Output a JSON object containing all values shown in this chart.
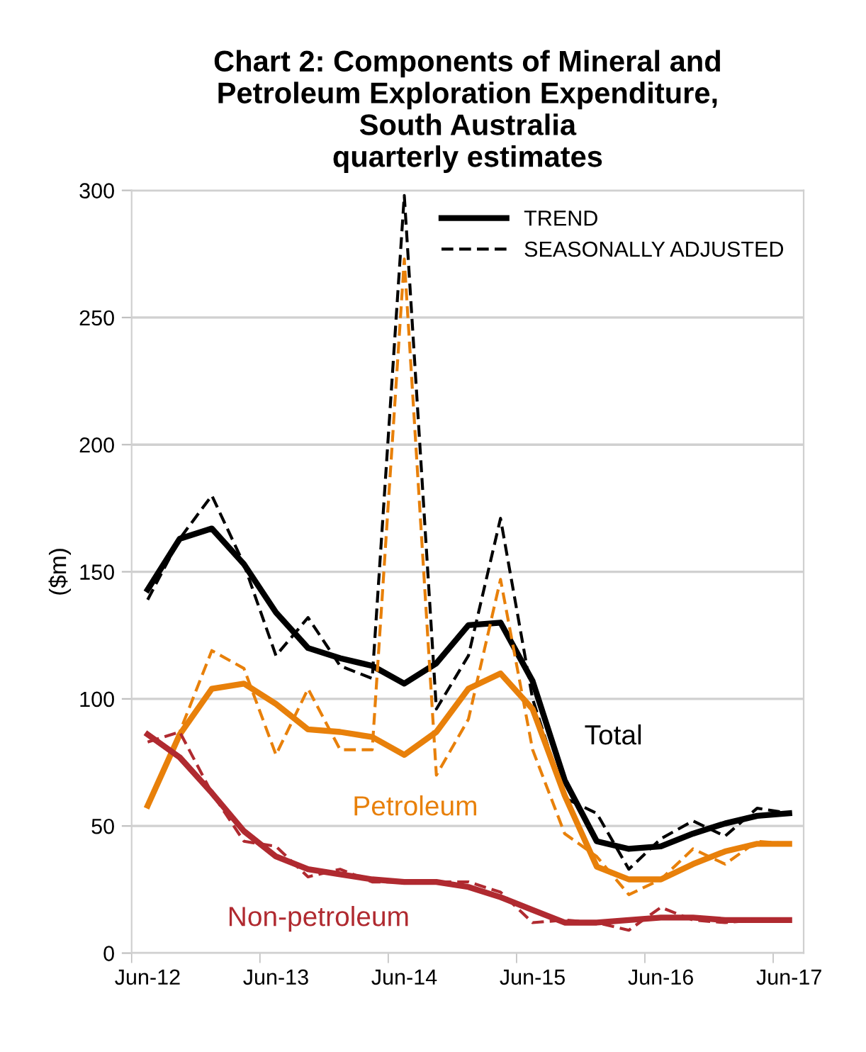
{
  "chart_data": {
    "type": "line",
    "title": "Chart 2: Components of Mineral and\nPetroleum Exploration Expenditure,\nSouth Australia\nquarterly estimates",
    "ylabel": "($m)",
    "categories": [
      "Jun-12",
      null,
      null,
      null,
      "Jun-13",
      null,
      null,
      null,
      "Jun-14",
      null,
      null,
      null,
      "Jun-15",
      null,
      null,
      null,
      "Jun-16",
      null,
      null,
      null,
      "Jun-17"
    ],
    "series": [
      {
        "name": "TREND",
        "color": "#000000",
        "line_style": "solid",
        "values": [
          143,
          163,
          167,
          153,
          134,
          120,
          116,
          113,
          106,
          114,
          129,
          130,
          107,
          68,
          44,
          41,
          42,
          47,
          51,
          54,
          55
        ]
      },
      {
        "name": "SEASONALLY ADJUSTED",
        "color": "#000000",
        "line_style": "dashed",
        "values": [
          139,
          163,
          180,
          153,
          117,
          132,
          113,
          108,
          298,
          96,
          117,
          171,
          100,
          61,
          55,
          33,
          45,
          52,
          46,
          57,
          55
        ]
      },
      {
        "color": "#e8800a",
        "line_style": "solid",
        "values": [
          58,
          86,
          104,
          106,
          98,
          88,
          87,
          85,
          78,
          87,
          104,
          110,
          96,
          62,
          34,
          29,
          29,
          35,
          40,
          43,
          43
        ]
      },
      {
        "color": "#e8800a",
        "line_style": "dashed",
        "values": [
          58,
          87,
          119,
          112,
          78,
          104,
          80,
          80,
          273,
          70,
          92,
          147,
          80,
          47,
          38,
          23,
          29,
          41,
          35,
          44,
          43
        ]
      },
      {
        "color": "#b02a30",
        "line_style": "solid",
        "values": [
          86,
          77,
          63,
          48,
          38,
          33,
          31,
          29,
          28,
          28,
          26,
          22,
          17,
          12,
          12,
          13,
          14,
          14,
          13,
          13,
          13
        ]
      },
      {
        "color": "#b02a30",
        "line_style": "dashed",
        "values": [
          83,
          87,
          63,
          44,
          42,
          30,
          33,
          28,
          28,
          28,
          28,
          24,
          12,
          13,
          12,
          9,
          18,
          13,
          12,
          13,
          13
        ]
      }
    ],
    "annotations": [
      "Total",
      "Petroleum",
      "Non-petroleum"
    ],
    "ylim": [
      0,
      300
    ],
    "yticks": [
      0,
      50,
      100,
      150,
      200,
      250,
      300
    ],
    "grid": "y",
    "legend": "top right",
    "marker": "none"
  }
}
